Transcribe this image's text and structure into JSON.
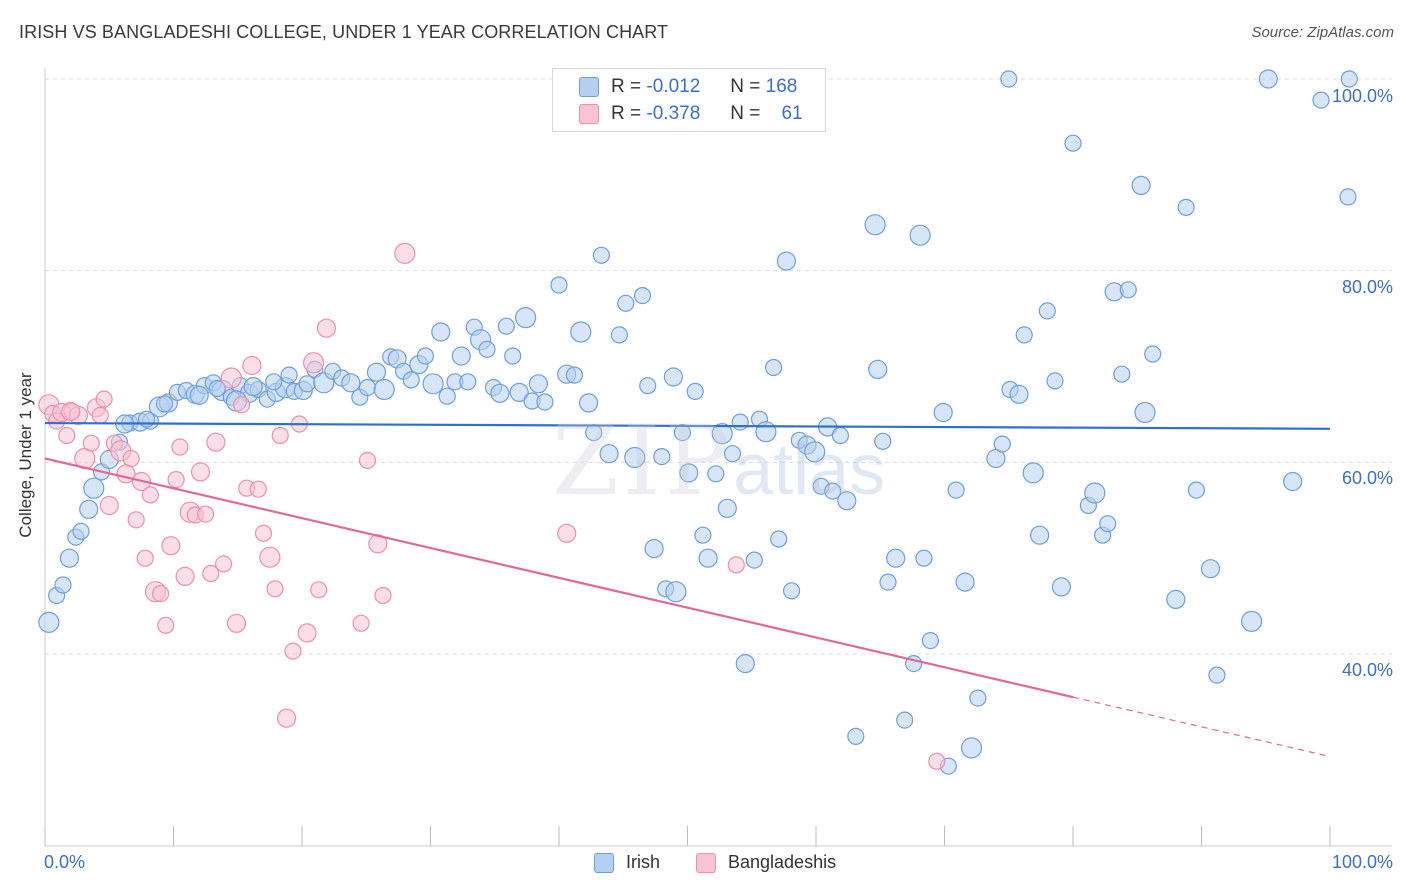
{
  "header": {
    "title": "IRISH VS BANGLADESHI COLLEGE, UNDER 1 YEAR CORRELATION CHART",
    "source": "Source: ZipAtlas.com"
  },
  "watermark": {
    "zip": "ZIP",
    "atlas": "atlas"
  },
  "legend_top": {
    "rows": [
      {
        "r_label": "R =",
        "r_value": "-0.012",
        "n_label": "N =",
        "n_value": "168"
      },
      {
        "r_label": "R =",
        "r_value": "-0.378",
        "n_label": "N =",
        "n_value": "61"
      }
    ]
  },
  "legend_bottom": {
    "irish": "Irish",
    "bangladeshis": "Bangladeshis"
  },
  "axes": {
    "ylabel": "College, Under 1 year",
    "x_min_label": "0.0%",
    "x_max_label": "100.0%",
    "y_ticks": [
      "100.0%",
      "80.0%",
      "60.0%",
      "40.0%"
    ]
  },
  "colors": {
    "irish_fill": "#b5cff0",
    "irish_stroke": "#6f9fdd",
    "irish_line": "#2f6fcf",
    "bangla_fill": "#f8c3d4",
    "bangla_stroke": "#ee8fb0",
    "bangla_line": "#e0699a",
    "tick_text": "#3d6fc7"
  },
  "chart_data": {
    "type": "scatter",
    "title": "IRISH VS BANGLADESHI COLLEGE, UNDER 1 YEAR CORRELATION CHART",
    "xlabel": "",
    "ylabel": "College, Under 1 year",
    "xlim": [
      0,
      100
    ],
    "ylim": [
      20,
      102
    ],
    "y_ticks": [
      40,
      60,
      80,
      100
    ],
    "grid": true,
    "series": [
      {
        "name": "Irish",
        "r": -0.012,
        "n": 168,
        "trend": {
          "x": [
            0,
            100
          ],
          "y": [
            64.1,
            63.5
          ]
        },
        "points": [
          [
            0.3,
            43.3
          ],
          [
            0.9,
            46.1
          ],
          [
            1.4,
            47.2
          ],
          [
            1.9,
            50.0
          ],
          [
            2.4,
            52.2
          ],
          [
            2.8,
            52.8
          ],
          [
            3.4,
            55.1
          ],
          [
            3.8,
            57.3
          ],
          [
            4.4,
            59.0
          ],
          [
            5.0,
            60.3
          ],
          [
            5.8,
            62.1
          ],
          [
            6.6,
            64.1
          ],
          [
            7.4,
            64.2
          ],
          [
            8.2,
            64.3
          ],
          [
            8.9,
            65.8
          ],
          [
            9.6,
            66.2
          ],
          [
            10.3,
            67.3
          ],
          [
            11.0,
            67.5
          ],
          [
            11.7,
            67.1
          ],
          [
            12.4,
            68.0
          ],
          [
            13.1,
            68.3
          ],
          [
            13.8,
            67.5
          ],
          [
            14.5,
            66.8
          ],
          [
            15.2,
            68.0
          ],
          [
            15.9,
            67.2
          ],
          [
            16.6,
            67.6
          ],
          [
            17.3,
            66.6
          ],
          [
            18.0,
            67.3
          ],
          [
            18.7,
            67.8
          ],
          [
            19.4,
            67.4
          ],
          [
            6.2,
            64.0
          ],
          [
            7.9,
            64.5
          ],
          [
            9.3,
            66.1
          ],
          [
            12.0,
            67.0
          ],
          [
            13.4,
            67.7
          ],
          [
            14.9,
            66.4
          ],
          [
            16.2,
            67.9
          ],
          [
            17.8,
            68.4
          ],
          [
            19.0,
            69.1
          ],
          [
            20.1,
            67.5
          ],
          [
            20.4,
            68.2
          ],
          [
            21.0,
            69.7
          ],
          [
            21.7,
            68.3
          ],
          [
            22.4,
            69.5
          ],
          [
            23.1,
            68.8
          ],
          [
            23.8,
            68.3
          ],
          [
            24.5,
            66.8
          ],
          [
            25.1,
            67.8
          ],
          [
            25.8,
            69.4
          ],
          [
            26.4,
            67.6
          ],
          [
            26.9,
            71.0
          ],
          [
            27.4,
            70.8
          ],
          [
            27.9,
            69.5
          ],
          [
            28.5,
            68.6
          ],
          [
            29.1,
            70.2
          ],
          [
            29.6,
            71.1
          ],
          [
            30.2,
            68.2
          ],
          [
            30.8,
            73.6
          ],
          [
            31.3,
            66.9
          ],
          [
            31.9,
            68.4
          ],
          [
            32.4,
            71.1
          ],
          [
            32.9,
            68.4
          ],
          [
            33.4,
            74.1
          ],
          [
            33.9,
            72.8
          ],
          [
            34.4,
            71.8
          ],
          [
            34.9,
            67.8
          ],
          [
            35.4,
            67.2
          ],
          [
            35.9,
            74.2
          ],
          [
            36.4,
            71.1
          ],
          [
            36.9,
            67.3
          ],
          [
            37.4,
            75.1
          ],
          [
            37.9,
            66.4
          ],
          [
            38.4,
            68.2
          ],
          [
            38.9,
            66.3
          ],
          [
            40.0,
            78.5
          ],
          [
            40.6,
            69.2
          ],
          [
            41.2,
            69.1
          ],
          [
            41.7,
            73.6
          ],
          [
            42.3,
            66.2
          ],
          [
            42.7,
            63.1
          ],
          [
            43.3,
            81.6
          ],
          [
            43.9,
            60.9
          ],
          [
            44.7,
            73.3
          ],
          [
            45.2,
            76.6
          ],
          [
            45.9,
            60.5
          ],
          [
            46.5,
            77.4
          ],
          [
            46.9,
            68.0
          ],
          [
            47.4,
            51.0
          ],
          [
            48.0,
            60.6
          ],
          [
            48.3,
            46.8
          ],
          [
            48.9,
            68.9
          ],
          [
            49.1,
            46.5
          ],
          [
            49.6,
            63.1
          ],
          [
            50.1,
            58.9
          ],
          [
            50.6,
            67.4
          ],
          [
            51.2,
            52.4
          ],
          [
            51.6,
            50.0
          ],
          [
            52.2,
            58.8
          ],
          [
            52.7,
            63.0
          ],
          [
            53.1,
            55.2
          ],
          [
            53.5,
            60.9
          ],
          [
            54.1,
            64.2
          ],
          [
            54.5,
            39.0
          ],
          [
            55.2,
            49.8
          ],
          [
            55.6,
            64.5
          ],
          [
            56.1,
            63.2
          ],
          [
            56.7,
            69.9
          ],
          [
            57.1,
            52.0
          ],
          [
            57.7,
            81.0
          ],
          [
            58.1,
            46.6
          ],
          [
            58.7,
            62.3
          ],
          [
            59.3,
            61.8
          ],
          [
            59.9,
            61.1
          ],
          [
            60.4,
            57.5
          ],
          [
            60.9,
            63.7
          ],
          [
            61.3,
            57.0
          ],
          [
            61.9,
            62.8
          ],
          [
            62.4,
            56.0
          ],
          [
            63.1,
            31.4
          ],
          [
            64.6,
            84.8
          ],
          [
            64.8,
            69.7
          ],
          [
            65.2,
            62.2
          ],
          [
            65.6,
            47.5
          ],
          [
            66.2,
            50.0
          ],
          [
            66.9,
            33.1
          ],
          [
            67.6,
            39.0
          ],
          [
            68.1,
            83.7
          ],
          [
            68.4,
            50.0
          ],
          [
            68.9,
            41.4
          ],
          [
            69.9,
            65.2
          ],
          [
            70.3,
            28.3
          ],
          [
            70.9,
            57.1
          ],
          [
            71.6,
            47.5
          ],
          [
            72.1,
            30.2
          ],
          [
            72.6,
            35.4
          ],
          [
            74.0,
            60.4
          ],
          [
            74.5,
            61.9
          ],
          [
            75.1,
            67.6
          ],
          [
            75.8,
            67.1
          ],
          [
            76.2,
            73.3
          ],
          [
            76.9,
            58.9
          ],
          [
            77.4,
            52.4
          ],
          [
            78.0,
            75.8
          ],
          [
            78.6,
            68.5
          ],
          [
            79.1,
            47.0
          ],
          [
            80.0,
            93.3
          ],
          [
            81.2,
            55.5
          ],
          [
            81.7,
            56.8
          ],
          [
            82.3,
            52.4
          ],
          [
            82.7,
            53.6
          ],
          [
            83.2,
            77.8
          ],
          [
            83.8,
            69.2
          ],
          [
            84.3,
            78.0
          ],
          [
            85.3,
            88.9
          ],
          [
            85.6,
            65.2
          ],
          [
            86.2,
            71.3
          ],
          [
            88.0,
            45.7
          ],
          [
            88.8,
            86.6
          ],
          [
            89.6,
            57.1
          ],
          [
            90.7,
            48.9
          ],
          [
            91.2,
            37.8
          ],
          [
            93.9,
            43.4
          ],
          [
            97.1,
            58.0
          ],
          [
            101.4,
            87.7
          ],
          [
            75.0,
            100.0
          ],
          [
            95.2,
            100.0
          ],
          [
            101.5,
            100.0
          ],
          [
            99.3,
            97.8
          ]
        ]
      },
      {
        "name": "Bangladeshis",
        "r": -0.378,
        "n": 61,
        "trend": {
          "x": [
            0,
            80
          ],
          "y": [
            60.4,
            35.5
          ]
        },
        "trend_dashed": {
          "x": [
            80,
            100
          ],
          "y": [
            35.5,
            29.3
          ]
        },
        "points": [
          [
            0.3,
            66.0
          ],
          [
            0.6,
            65.1
          ],
          [
            0.9,
            64.3
          ],
          [
            1.3,
            65.2
          ],
          [
            1.7,
            62.8
          ],
          [
            2.1,
            65.3
          ],
          [
            2.6,
            64.9
          ],
          [
            3.1,
            60.4
          ],
          [
            3.6,
            62.0
          ],
          [
            4.0,
            65.7
          ],
          [
            4.3,
            64.9
          ],
          [
            4.6,
            66.6
          ],
          [
            5.0,
            55.5
          ],
          [
            5.4,
            62.0
          ],
          [
            5.9,
            61.2
          ],
          [
            6.3,
            58.8
          ],
          [
            6.7,
            60.4
          ],
          [
            7.1,
            54.0
          ],
          [
            7.5,
            58.0
          ],
          [
            7.8,
            50.0
          ],
          [
            8.2,
            56.6
          ],
          [
            8.6,
            46.5
          ],
          [
            9.0,
            46.3
          ],
          [
            9.4,
            43.0
          ],
          [
            9.8,
            51.3
          ],
          [
            10.2,
            58.2
          ],
          [
            10.5,
            61.6
          ],
          [
            10.9,
            48.1
          ],
          [
            11.3,
            54.8
          ],
          [
            11.7,
            54.5
          ],
          [
            12.1,
            59.0
          ],
          [
            12.5,
            54.6
          ],
          [
            12.9,
            48.4
          ],
          [
            13.3,
            62.1
          ],
          [
            13.9,
            49.4
          ],
          [
            14.5,
            68.8
          ],
          [
            14.9,
            43.2
          ],
          [
            15.3,
            66.0
          ],
          [
            15.7,
            57.3
          ],
          [
            16.1,
            70.1
          ],
          [
            16.6,
            57.2
          ],
          [
            17.0,
            52.6
          ],
          [
            17.5,
            50.1
          ],
          [
            17.9,
            46.8
          ],
          [
            18.3,
            62.8
          ],
          [
            18.8,
            33.3
          ],
          [
            19.3,
            40.3
          ],
          [
            19.8,
            64.0
          ],
          [
            20.4,
            42.2
          ],
          [
            20.9,
            70.4
          ],
          [
            21.3,
            46.7
          ],
          [
            21.9,
            74.0
          ],
          [
            24.6,
            43.2
          ],
          [
            25.1,
            60.2
          ],
          [
            25.9,
            51.5
          ],
          [
            26.3,
            46.1
          ],
          [
            28.0,
            81.8
          ],
          [
            40.6,
            52.6
          ],
          [
            53.8,
            49.3
          ],
          [
            69.4,
            28.8
          ],
          [
            2.0,
            65.3
          ]
        ]
      }
    ]
  }
}
